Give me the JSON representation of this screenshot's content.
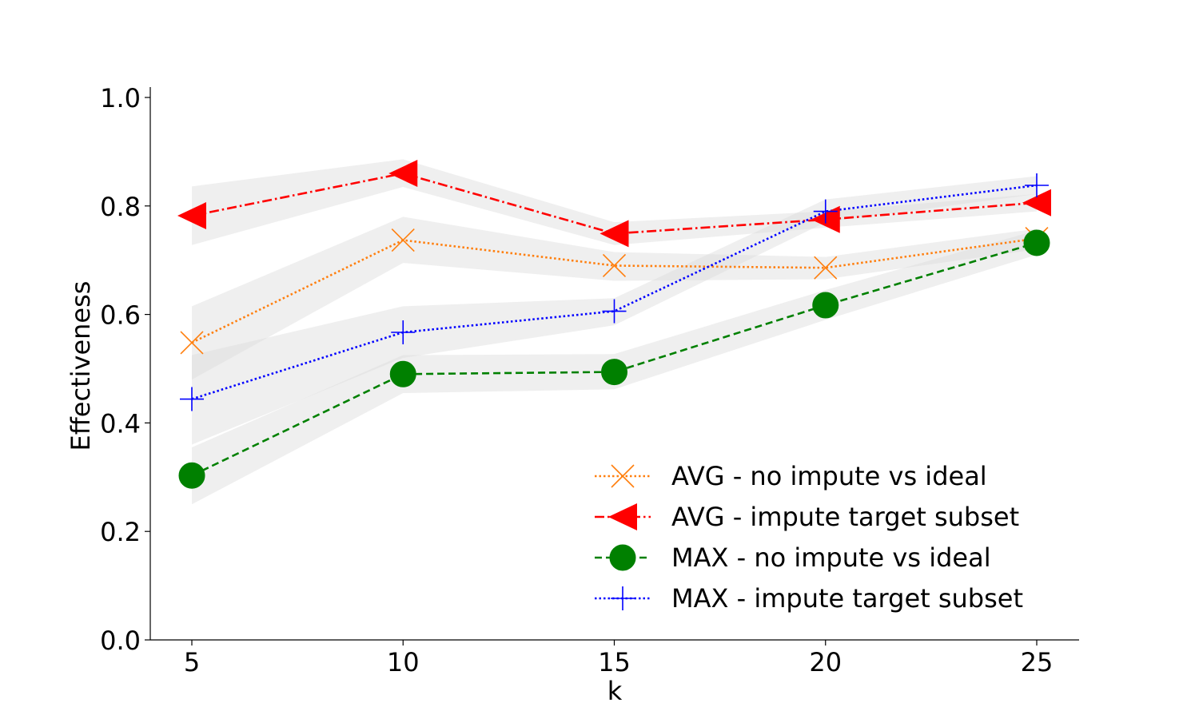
{
  "chart_data": {
    "type": "line",
    "xlabel": "k",
    "ylabel": "Effectiveness",
    "x": [
      5,
      10,
      15,
      20,
      25
    ],
    "x_ticks": [
      "5",
      "10",
      "15",
      "20",
      "25"
    ],
    "y_ticks": [
      "0.0",
      "0.2",
      "0.4",
      "0.6",
      "0.8",
      "1.0"
    ],
    "xlim": [
      4,
      26
    ],
    "ylim": [
      0,
      1.02
    ],
    "grid": false,
    "legend_position": "lower right",
    "band_color": "#d9d9d9",
    "series": [
      {
        "name": "AVG - no impute vs ideal",
        "values": [
          0.548,
          0.737,
          0.69,
          0.686,
          0.74
        ],
        "lower": [
          0.48,
          0.695,
          0.662,
          0.665,
          0.72
        ],
        "upper": [
          0.615,
          0.78,
          0.715,
          0.706,
          0.758
        ],
        "color": "#ff7f0e",
        "marker": "x-marker",
        "line_style": "dotted"
      },
      {
        "name": "AVG - impute target subset",
        "values": [
          0.782,
          0.86,
          0.749,
          0.775,
          0.806
        ],
        "lower": [
          0.728,
          0.835,
          0.728,
          0.76,
          0.79
        ],
        "upper": [
          0.836,
          0.886,
          0.77,
          0.79,
          0.822
        ],
        "color": "#ff0000",
        "marker": "left-triangle-marker",
        "line_style": "dashdot"
      },
      {
        "name": "MAX - no impute vs ideal",
        "values": [
          0.303,
          0.49,
          0.494,
          0.617,
          0.732
        ],
        "lower": [
          0.25,
          0.455,
          0.462,
          0.59,
          0.71
        ],
        "upper": [
          0.355,
          0.525,
          0.527,
          0.645,
          0.755
        ],
        "color": "#008000",
        "marker": "circle-marker",
        "line_style": "dashed"
      },
      {
        "name": "MAX - impute target subset",
        "values": [
          0.444,
          0.567,
          0.606,
          0.79,
          0.838
        ],
        "lower": [
          0.36,
          0.52,
          0.58,
          0.77,
          0.822
        ],
        "upper": [
          0.525,
          0.615,
          0.63,
          0.812,
          0.855
        ],
        "color": "#0000ff",
        "marker": "plus-marker",
        "line_style": "dotted"
      }
    ]
  }
}
